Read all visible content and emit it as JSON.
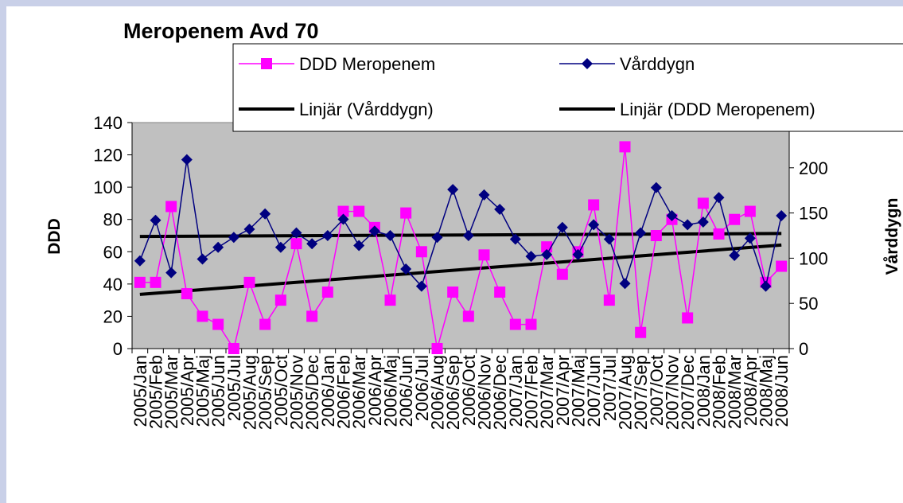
{
  "chart_data": {
    "type": "line",
    "title": "Meropenem Avd 70",
    "y_label": "DDD",
    "y2_label": "Vårddygn",
    "categories": [
      "2005/Jan",
      "2005/Feb",
      "2005/Mar",
      "2005/Apr",
      "2005/Maj",
      "2005/Jun",
      "2005/Jul",
      "2005/Aug",
      "2005/Sep",
      "2005/Oct",
      "2005/Nov",
      "2005/Dec",
      "2006/Jan",
      "2006/Feb",
      "2006/Mar",
      "2006/Apr",
      "2006/Maj",
      "2006/Jun",
      "2006/Jul",
      "2006/Aug",
      "2006/Sep",
      "2006/Oct",
      "2006/Nov",
      "2006/Dec",
      "2007/Jan",
      "2007/Feb",
      "2007/Mar",
      "2007/Apr",
      "2007/Maj",
      "2007/Jun",
      "2007/Jul",
      "2007/Aug",
      "2007/Sep",
      "2007/Oct",
      "2007/Nov",
      "2007/Dec",
      "2008/Jan",
      "2008/Feb",
      "2008/Mar",
      "2008/Apr",
      "2008/Maj",
      "2008/Jun"
    ],
    "series": [
      {
        "name": "DDD Meropenem",
        "color": "#ff00ff",
        "marker": "square",
        "axis": "y",
        "values": [
          41,
          41,
          88,
          34,
          20,
          15,
          0,
          41,
          15,
          30,
          65,
          20,
          35,
          85,
          85,
          75,
          30,
          84,
          60,
          0,
          35,
          20,
          58,
          35,
          15,
          15,
          63,
          46,
          60,
          89,
          30,
          125,
          10,
          70,
          80,
          19,
          90,
          71,
          80,
          85,
          41,
          51
        ],
        "trendline": {
          "name": "Linjär (DDD Meropenem)",
          "color": "#000000"
        }
      },
      {
        "name": "Vårddygn",
        "color": "#000080",
        "marker": "diamond",
        "axis": "y2",
        "values": [
          97,
          142,
          84,
          209,
          99,
          112,
          123,
          132,
          149,
          112,
          128,
          116,
          125,
          143,
          114,
          130,
          125,
          88,
          69,
          123,
          176,
          125,
          170,
          154,
          121,
          102,
          104,
          134,
          104,
          137,
          121,
          72,
          128,
          178,
          147,
          137,
          140,
          167,
          103,
          122,
          69,
          147
        ],
        "trendline": {
          "name": "Linjär (Vårddygn)",
          "color": "#000000"
        }
      }
    ],
    "ylim": [
      0,
      140
    ],
    "yticks": [
      0,
      20,
      40,
      60,
      80,
      100,
      120,
      140
    ],
    "y2lim": [
      0,
      250
    ],
    "y2ticks": [
      0,
      50,
      100,
      150,
      200
    ],
    "plot_background": "#c0c0c0"
  }
}
